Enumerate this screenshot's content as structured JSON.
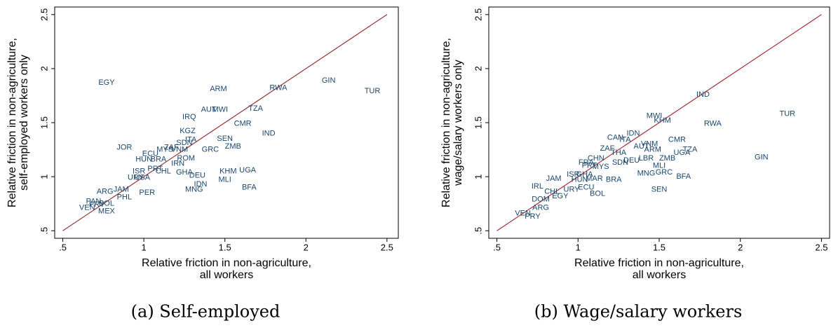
{
  "chart_data": [
    {
      "type": "scatter",
      "caption": "(a) Self-employed",
      "x_label": [
        "Relative friction in non-agriculture,",
        "all workers"
      ],
      "y_label": [
        "Relative friction in non-agriculture,",
        "self-employed workers only"
      ],
      "labels": [
        "EGY",
        "ARM",
        "RWA",
        "GIN",
        "TUR",
        "AUT",
        "MWI",
        "TZA",
        "IRQ",
        "CMR",
        "IND",
        "KGZ",
        "SEN",
        "ITA",
        "SDN",
        "ZMB",
        "GRC",
        "JOR",
        "ZAF",
        "MYS",
        "VNM",
        "ECU",
        "HUN",
        "BRA",
        "ROM",
        "IRN",
        "PRT",
        "CHL",
        "ISR",
        "GHA",
        "KHM",
        "UGA",
        "DEU",
        "URY",
        "USA",
        "IDN",
        "MLI",
        "MNG",
        "BFA",
        "JAM",
        "PER",
        "ARG",
        "PHL",
        "PAN",
        "BOL",
        "PRY",
        "VEN",
        "MEX"
      ],
      "x": [
        0.77,
        1.46,
        1.83,
        2.14,
        2.41,
        1.4,
        1.47,
        1.69,
        1.28,
        1.61,
        1.77,
        1.27,
        1.5,
        1.29,
        1.25,
        1.55,
        1.41,
        0.88,
        1.17,
        1.13,
        1.22,
        1.04,
        1.0,
        1.09,
        1.26,
        1.21,
        1.07,
        1.12,
        0.97,
        1.25,
        1.52,
        1.64,
        1.33,
        0.95,
        0.99,
        1.35,
        1.5,
        1.31,
        1.65,
        0.86,
        1.02,
        0.76,
        0.88,
        0.69,
        0.77,
        0.71,
        0.65,
        0.77
      ],
      "y": [
        1.87,
        1.81,
        1.82,
        1.89,
        1.79,
        1.62,
        1.62,
        1.63,
        1.55,
        1.49,
        1.4,
        1.42,
        1.35,
        1.34,
        1.31,
        1.28,
        1.25,
        1.27,
        1.27,
        1.25,
        1.25,
        1.21,
        1.16,
        1.16,
        1.17,
        1.12,
        1.07,
        1.05,
        1.05,
        1.04,
        1.05,
        1.06,
        1.01,
        0.99,
        0.99,
        0.93,
        0.97,
        0.88,
        0.9,
        0.88,
        0.85,
        0.86,
        0.81,
        0.77,
        0.75,
        0.74,
        0.71,
        0.68
      ],
      "marker_color": "#1a476f",
      "line_color": "#a0343c",
      "xlim": [
        0.45,
        2.57
      ],
      "ylim": [
        0.43,
        2.57
      ],
      "xticks": [
        {
          "value": 0.5,
          "label": ".5"
        },
        1,
        1.5,
        2,
        2.5
      ],
      "yticks": [
        {
          "value": 0.5,
          "label": ".5"
        },
        1,
        1.5,
        2,
        2.5
      ]
    },
    {
      "type": "scatter",
      "caption": "(b) Wage/salary workers",
      "x_label": [
        "Relative friction in non-agriculture,",
        "all workers"
      ],
      "y_label": [
        "Relative friction in non-agriculture,",
        "wage/salary workers only"
      ],
      "labels": [
        "IND",
        "MWI",
        "KHM",
        "TUR",
        "RWA",
        "IDN",
        "CAN",
        "ITA",
        "CMR",
        "VNM",
        "ZAF",
        "AUT",
        "ARM",
        "THA",
        "TZA",
        "UGA",
        "GIN",
        "CHN",
        "LBR",
        "ZMB",
        "DEU",
        "FRA",
        "MLI",
        "SDN",
        "MYS",
        "PRT",
        "ISR",
        "GHA",
        "BFA",
        "GRC",
        "MNG",
        "BRA",
        "MAR",
        "HUN",
        "JAM",
        "IRL",
        "ECU",
        "URY",
        "SEN",
        "BOL",
        "CHL",
        "EGY",
        "DOM",
        "ARG",
        "VEN",
        "PRY"
      ],
      "x": [
        1.77,
        1.47,
        1.52,
        2.29,
        1.83,
        1.34,
        1.23,
        1.29,
        1.61,
        1.44,
        1.18,
        1.39,
        1.46,
        1.25,
        1.69,
        1.64,
        2.13,
        1.11,
        1.42,
        1.55,
        1.33,
        1.05,
        1.5,
        1.26,
        1.14,
        1.07,
        0.97,
        1.04,
        1.65,
        1.53,
        1.42,
        1.22,
        1.1,
        1.01,
        0.85,
        0.75,
        1.05,
        0.96,
        1.5,
        1.12,
        0.84,
        0.89,
        0.77,
        0.77,
        0.66,
        0.72
      ],
      "y": [
        1.76,
        1.56,
        1.52,
        1.58,
        1.49,
        1.4,
        1.36,
        1.34,
        1.34,
        1.3,
        1.26,
        1.28,
        1.25,
        1.22,
        1.25,
        1.22,
        1.18,
        1.17,
        1.17,
        1.17,
        1.15,
        1.13,
        1.1,
        1.13,
        1.09,
        1.1,
        1.02,
        1.02,
        1.0,
        1.04,
        1.03,
        0.97,
        0.98,
        0.97,
        0.98,
        0.91,
        0.9,
        0.88,
        0.88,
        0.84,
        0.86,
        0.82,
        0.79,
        0.71,
        0.66,
        0.63
      ],
      "marker_color": "#1a476f",
      "line_color": "#a0343c",
      "xlim": [
        0.45,
        2.55
      ],
      "ylim": [
        0.43,
        2.57
      ],
      "xticks": [
        {
          "value": 0.5,
          "label": ".5"
        },
        1,
        1.5,
        2,
        2.5
      ],
      "yticks": [
        {
          "value": 0.5,
          "label": ".5"
        },
        1,
        1.5,
        2,
        2.5
      ]
    }
  ]
}
